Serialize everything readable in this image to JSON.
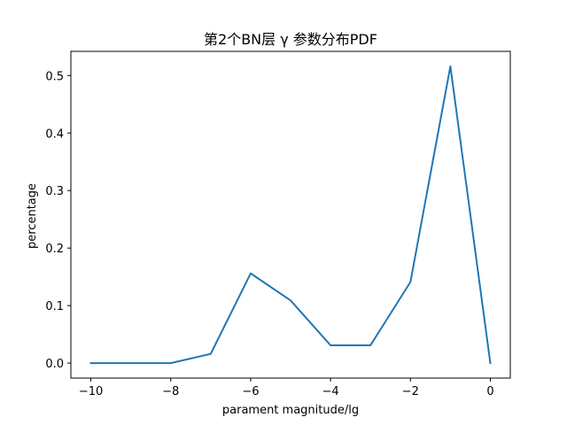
{
  "chart_data": {
    "type": "line",
    "title": "第2个BN层 γ 参数分布PDF",
    "xlabel": "parament magnitude/lg",
    "ylabel": "percentage",
    "xlim": [
      -10.5,
      0.5
    ],
    "ylim": [
      -0.026,
      0.542
    ],
    "xticks": [
      -10,
      -8,
      -6,
      -4,
      -2,
      0
    ],
    "xtick_labels": [
      "−10",
      "−8",
      "−6",
      "−4",
      "−2",
      "0"
    ],
    "yticks": [
      0.0,
      0.1,
      0.2,
      0.3,
      0.4,
      0.5
    ],
    "ytick_labels": [
      "0.0",
      "0.1",
      "0.2",
      "0.3",
      "0.4",
      "0.5"
    ],
    "grid": false,
    "series": [
      {
        "color": "#1f77b4",
        "x": [
          -10,
          -9,
          -8,
          -7,
          -6,
          -5,
          -4,
          -3,
          -2,
          -1,
          0
        ],
        "y": [
          0.0,
          0.0,
          0.0,
          0.016,
          0.156,
          0.109,
          0.031,
          0.031,
          0.141,
          0.516,
          0.0
        ]
      }
    ]
  }
}
